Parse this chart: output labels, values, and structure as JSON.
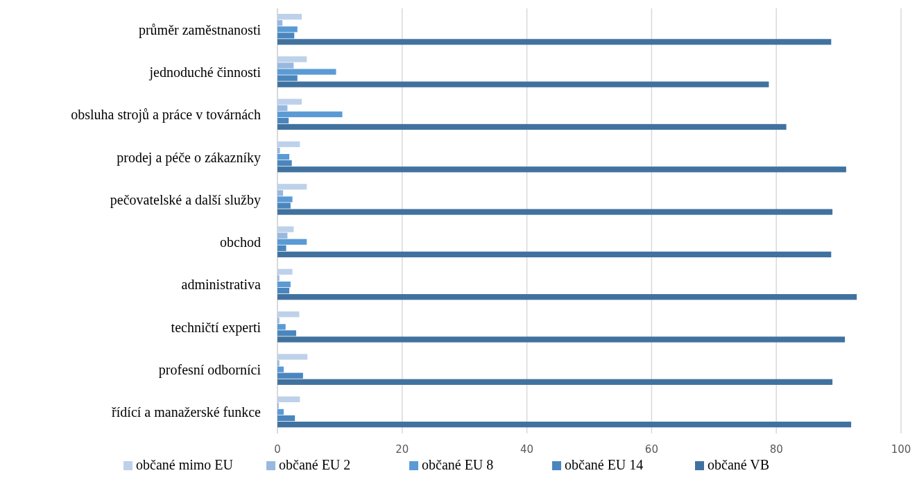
{
  "chart_data": {
    "type": "bar",
    "orientation": "horizontal",
    "grid": "x",
    "legend": "bottom",
    "categories": [
      "průměr zaměstnanosti",
      "jednoduché činnosti",
      "obsluha strojů a práce v továrnách",
      "prodej a péče o zákazníky",
      "pečovatelské a další služby",
      "obchod",
      "administrativa",
      "techničtí experti",
      "profesní odborníci",
      "řídící a manažerské funkce"
    ],
    "series": [
      {
        "name": "občané mimo EU",
        "color": "#bdd1ea",
        "values": [
          3.9,
          4.7,
          3.9,
          3.6,
          4.7,
          2.6,
          2.4,
          3.5,
          4.8,
          3.6
        ]
      },
      {
        "name": "občané EU 2",
        "color": "#98b8df",
        "values": [
          0.8,
          2.6,
          1.6,
          0.4,
          0.9,
          1.6,
          0.3,
          0.3,
          0.3,
          0.2
        ]
      },
      {
        "name": "občané EU 8",
        "color": "#5b9bd5",
        "values": [
          3.2,
          9.4,
          10.4,
          1.9,
          2.4,
          4.7,
          2.1,
          1.3,
          1.0,
          1.0
        ]
      },
      {
        "name": "občané EU 14",
        "color": "#4a86bd",
        "values": [
          2.7,
          3.2,
          1.8,
          2.3,
          2.1,
          1.4,
          1.9,
          3.0,
          4.1,
          2.8
        ]
      },
      {
        "name": "občané VB",
        "color": "#41729f",
        "values": [
          88.8,
          78.8,
          81.6,
          91.2,
          89.0,
          88.8,
          92.9,
          91.0,
          89.0,
          92.0
        ]
      }
    ],
    "xlim": [
      0,
      100
    ],
    "xticks": [
      0,
      20,
      40,
      60,
      80,
      100
    ]
  }
}
